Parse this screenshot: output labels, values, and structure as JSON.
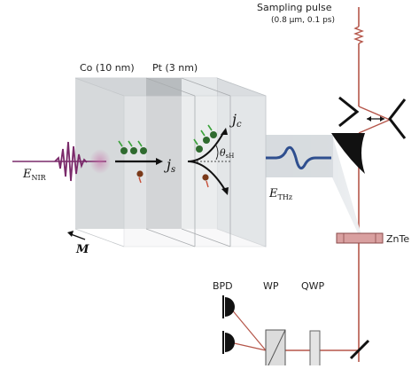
{
  "labels": {
    "sampling_pulse": "Sampling pulse",
    "sampling_params": "(0.8 µm, 0.1 ps)",
    "co_layer": "Co (10 nm)",
    "pt_layer": "Pt (3 nm)",
    "e_nir_main": "E",
    "e_nir_sub": "NIR",
    "e_thz_main": "E",
    "e_thz_sub": "THz",
    "j_s_main": "j",
    "j_s_sub": "s",
    "j_c_main": "j",
    "j_c_sub": "c",
    "theta_main": "θ",
    "theta_sub": "sH",
    "m_label": "M",
    "znte": "ZnTe",
    "bpd": "BPD",
    "wp": "WP",
    "qwp": "QWP"
  },
  "colors": {
    "beam_red": "#b5564a",
    "nir_pulse": "#7a2a6a",
    "thz_wave": "#2f4f8f",
    "electron_green": "#2f6b2f",
    "spin_arrow_green": "#3aa23a",
    "hole_brown": "#7a3a1a",
    "znte_fill": "#d9a0a0",
    "mirror_black": "#111111"
  },
  "icons": {
    "delay_stage": "delay-stage-icon",
    "parabolic_mirror": "parabolic-mirror-icon",
    "photodiode": "photodiode-icon",
    "fold_mirror": "fold-mirror-icon"
  }
}
